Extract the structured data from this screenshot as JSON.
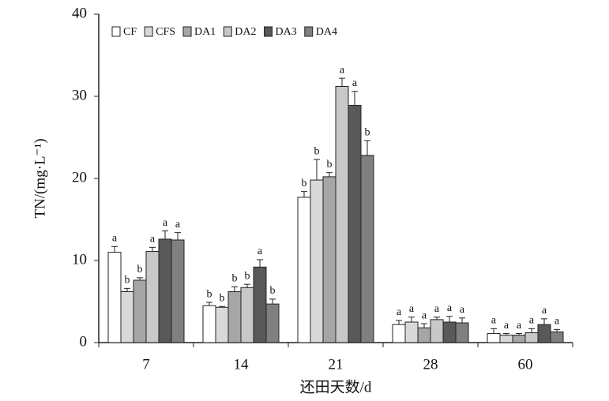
{
  "chart_data": {
    "type": "bar",
    "y_label": "TN/(mg·L⁻¹)",
    "x_label": "还田天数/d",
    "categories": [
      "7",
      "14",
      "21",
      "28",
      "60"
    ],
    "ylim": [
      0,
      40
    ],
    "yticks": [
      0,
      10,
      20,
      30,
      40
    ],
    "legend": "top-left",
    "series": [
      {
        "name": "CF",
        "color": "#ffffff",
        "values": [
          11.0,
          4.5,
          17.7,
          2.2,
          1.1
        ],
        "errors": [
          0.7,
          0.4,
          0.7,
          0.5,
          0.6
        ],
        "significance": [
          "a",
          "b",
          "b",
          "a",
          "a"
        ]
      },
      {
        "name": "CFS",
        "color": "#d9d9d9",
        "values": [
          6.2,
          4.3,
          19.8,
          2.5,
          0.9
        ],
        "errors": [
          0.4,
          0.1,
          2.5,
          0.6,
          0.2
        ],
        "significance": [
          "b",
          "b",
          "b",
          "a",
          "a"
        ]
      },
      {
        "name": "DA1",
        "color": "#a6a6a6",
        "values": [
          7.6,
          6.2,
          20.2,
          1.8,
          0.9
        ],
        "errors": [
          0.3,
          0.6,
          0.5,
          0.5,
          0.2
        ],
        "significance": [
          "b",
          "b",
          "b",
          "a",
          "a"
        ]
      },
      {
        "name": "DA2",
        "color": "#c8c8c8",
        "values": [
          11.1,
          6.7,
          31.2,
          2.8,
          1.2
        ],
        "errors": [
          0.5,
          0.4,
          1.0,
          0.3,
          0.5
        ],
        "significance": [
          "a",
          "b",
          "a",
          "a",
          "a"
        ]
      },
      {
        "name": "DA3",
        "color": "#595959",
        "values": [
          12.6,
          9.2,
          28.9,
          2.5,
          2.2
        ],
        "errors": [
          1.0,
          0.9,
          1.7,
          0.7,
          0.7
        ],
        "significance": [
          "a",
          "a",
          "a",
          "a",
          "a"
        ]
      },
      {
        "name": "DA4",
        "color": "#808080",
        "values": [
          12.5,
          4.7,
          22.8,
          2.4,
          1.3
        ],
        "errors": [
          0.9,
          0.6,
          1.8,
          0.6,
          0.3
        ],
        "significance": [
          "a",
          "b",
          "b",
          "a",
          "a"
        ]
      }
    ]
  }
}
